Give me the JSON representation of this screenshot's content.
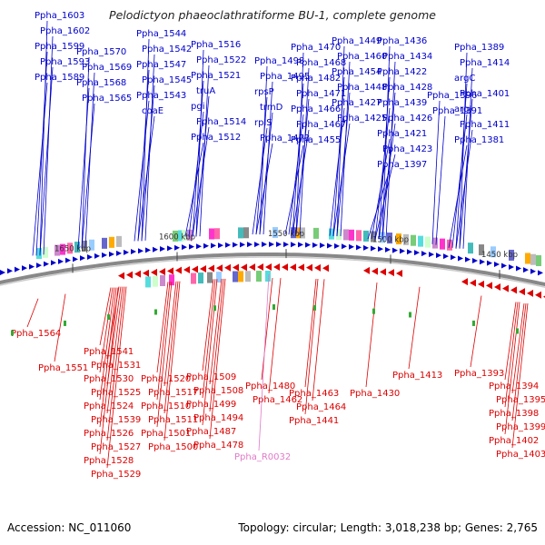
{
  "title": "Pelodictyon phaeoclathratiforme BU-1, complete genome",
  "footer": {
    "accession": "Accession: NC_011060",
    "summary": "Topology: circular; Length: 3,018,238 bp; Genes: 2,765"
  },
  "colors": {
    "forward": "#0000cc",
    "reverse": "#dd0000",
    "rna": "#e07ac8",
    "backbone": "#888888",
    "marker": "#33aa33"
  },
  "scale_labels": [
    {
      "text": "1650 kbp"
    },
    {
      "text": "1600 kbp"
    },
    {
      "text": "1550 kbp"
    },
    {
      "text": "1500 kbp"
    },
    {
      "text": "1450 kbp"
    }
  ],
  "forward_genes": [
    "Ppha_1603",
    "Ppha_1602",
    "Ppha_1599",
    "Ppha_1593",
    "Ppha_1589",
    "Ppha_1570",
    "Ppha_1569",
    "Ppha_1568",
    "Ppha_1565",
    "Ppha_1544",
    "Ppha_1542",
    "Ppha_1547",
    "Ppha_1545",
    "Ppha_1543",
    "coaE",
    "Ppha_1516",
    "Ppha_1522",
    "Ppha_1521",
    "truA",
    "pgi",
    "Ppha_1514",
    "Ppha_1512",
    "Ppha_1498",
    "Ppha_1495",
    "rpsP",
    "trmD",
    "rplS",
    "Ppha_1473",
    "Ppha_1470",
    "Ppha_1468",
    "Ppha_1482",
    "Ppha_1471",
    "Ppha_1466",
    "Ppha_1467",
    "Ppha_1455",
    "Ppha_1449",
    "Ppha_1460",
    "Ppha_1454",
    "Ppha_1448",
    "Ppha_1427",
    "Ppha_1425",
    "Ppha_1436",
    "Ppha_1434",
    "Ppha_1422",
    "Ppha_1428",
    "Ppha_1439",
    "Ppha_1426",
    "Ppha_1421",
    "Ppha_1423",
    "Ppha_1397",
    "Ppha_1396",
    "Ppha_1391",
    "Ppha_1389",
    "Ppha_1414",
    "argC",
    "Ppha_1401",
    "argJ",
    "Ppha_1411",
    "Ppha_1381"
  ],
  "reverse_genes": [
    "Ppha_1564",
    "Ppha_1551",
    "Ppha_1541",
    "Ppha_1531",
    "Ppha_1530",
    "Ppha_1525",
    "Ppha_1524",
    "Ppha_1539",
    "Ppha_1526",
    "Ppha_1527",
    "Ppha_1528",
    "Ppha_1529",
    "Ppha_1520",
    "Ppha_1517",
    "Ppha_1510",
    "Ppha_1511",
    "Ppha_1501",
    "Ppha_1500",
    "Ppha_1509",
    "Ppha_1508",
    "Ppha_1499",
    "Ppha_1494",
    "Ppha_1487",
    "Ppha_1478",
    "Ppha_1480",
    "Ppha_1462",
    "Ppha_1463",
    "Ppha_1464",
    "Ppha_1441",
    "Ppha_1430",
    "Ppha_1413",
    "Ppha_1393",
    "Ppha_1394",
    "Ppha_1395",
    "Ppha_1398",
    "Ppha_1399",
    "Ppha_1402",
    "Ppha_1403"
  ],
  "rna_genes": [
    "Ppha_R0032"
  ]
}
